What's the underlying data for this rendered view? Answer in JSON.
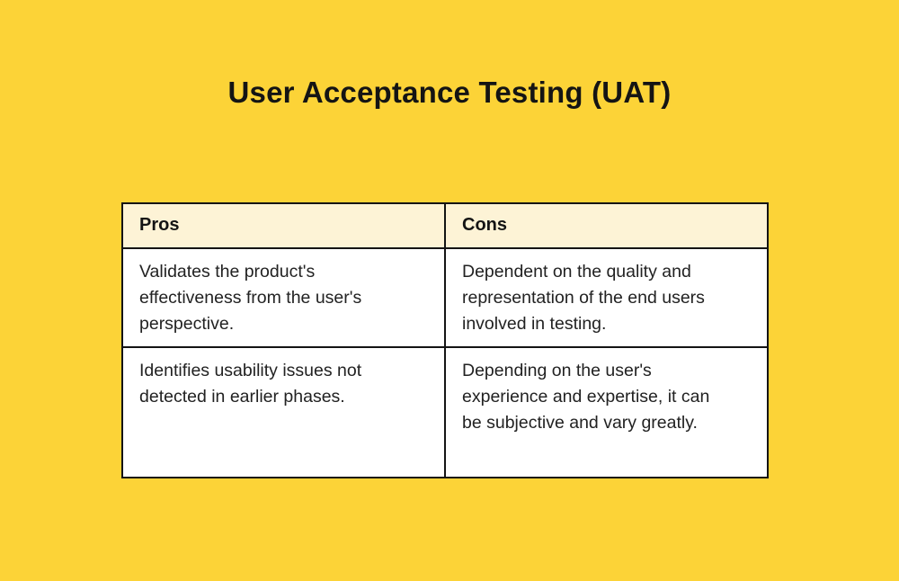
{
  "title": "User Acceptance Testing (UAT)",
  "colors": {
    "background": "#FCD337",
    "header_bg": "#FDF3D6",
    "cell_bg": "#FFFFFF",
    "border": "#141414",
    "title_text": "#141414",
    "body_text": "#222222"
  },
  "table": {
    "headers": [
      "Pros",
      "Cons"
    ],
    "rows": [
      [
        "Validates the product's effectiveness from the user's perspective.",
        "Dependent on the quality and representation of the end users involved in testing."
      ],
      [
        "Identifies usability issues not detected in earlier phases.",
        "Depending on the user's experience and expertise, it can be subjective and vary greatly."
      ]
    ]
  }
}
